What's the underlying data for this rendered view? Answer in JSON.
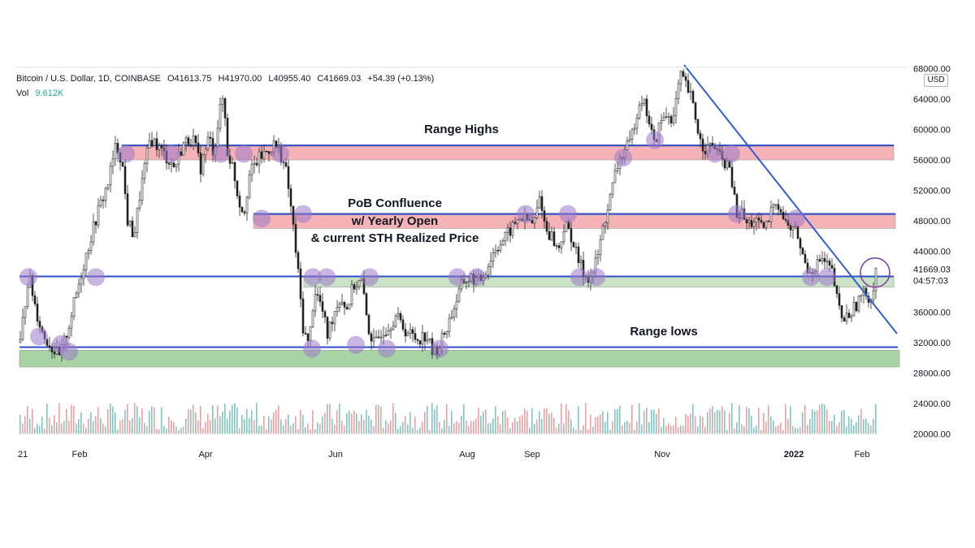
{
  "header": {
    "symbol": "Bitcoin / U.S. Dollar, 1D, COINBASE",
    "open": "O41613.75",
    "high": "H41970.00",
    "low": "L40955.40",
    "close": "C41669.03",
    "change": "+54.39 (+0.13%)",
    "volume_label": "Vol",
    "volume_value": "9.612K",
    "currency": "USD"
  },
  "chart_data": {
    "type": "candlestick",
    "x_ticks": [
      "21",
      "Feb",
      "Apr",
      "Jun",
      "Aug",
      "Sep",
      "Nov",
      "2022",
      "Feb"
    ],
    "y_ticks": [
      68000,
      64000,
      60000,
      56000,
      52000,
      48000,
      44000,
      36000,
      32000,
      28000,
      24000,
      20000
    ],
    "y_tick_labels": [
      "68000.00",
      "64000.00",
      "60000.00",
      "56000.00",
      "52000.00",
      "48000.00",
      "44000.00",
      "36000.00",
      "32000.00",
      "28000.00",
      "24000.00",
      "20000.00"
    ],
    "ylim": [
      20000,
      68500
    ],
    "price_label": "41669.03",
    "countdown_label": "04:57:03",
    "last_price": 41669.03,
    "zones": [
      {
        "name": "Range Highs",
        "color": "#f5b3b8",
        "top": 58000,
        "bottom": 56000
      },
      {
        "name": "PoB Confluence",
        "color": "#f5b3b8",
        "top": 49000,
        "bottom": 47000
      },
      {
        "name": "support-band",
        "color": "#c9e3c4",
        "top": 40700,
        "bottom": 39300
      },
      {
        "name": "Range lows",
        "color": "#a8d3a5",
        "top": 31000,
        "bottom": 28800
      }
    ],
    "horizontal_lines": [
      57900,
      48900,
      40700,
      31400
    ],
    "trendline": {
      "from": [
        "Nov 10",
        69000
      ],
      "to": [
        "Feb",
        33000
      ]
    },
    "annotations": [
      "Range Highs",
      "PoB Confluence",
      "w/ Yearly Open",
      "& current STH Realized Price",
      "Range lows"
    ],
    "path": [
      [
        0,
        32000
      ],
      [
        10,
        41000
      ],
      [
        20,
        36000
      ],
      [
        28,
        33000
      ],
      [
        38,
        31500
      ],
      [
        48,
        30000
      ],
      [
        58,
        33500
      ],
      [
        68,
        38000
      ],
      [
        82,
        44000
      ],
      [
        95,
        49000
      ],
      [
        108,
        53000
      ],
      [
        118,
        58000
      ],
      [
        125,
        56000
      ],
      [
        132,
        48000
      ],
      [
        140,
        46000
      ],
      [
        148,
        52000
      ],
      [
        160,
        59000
      ],
      [
        175,
        57000
      ],
      [
        190,
        55000
      ],
      [
        200,
        58000
      ],
      [
        212,
        59000
      ],
      [
        222,
        55000
      ],
      [
        232,
        59000
      ],
      [
        238,
        57000
      ],
      [
        245,
        62000
      ],
      [
        250,
        64500
      ],
      [
        255,
        57000
      ],
      [
        262,
        55000
      ],
      [
        268,
        51000
      ],
      [
        275,
        49000
      ],
      [
        282,
        54000
      ],
      [
        292,
        56000
      ],
      [
        302,
        57000
      ],
      [
        312,
        58000
      ],
      [
        320,
        57000
      ],
      [
        328,
        54000
      ],
      [
        335,
        48000
      ],
      [
        342,
        41000
      ],
      [
        348,
        34000
      ],
      [
        355,
        31500
      ],
      [
        362,
        39000
      ],
      [
        370,
        37000
      ],
      [
        378,
        33000
      ],
      [
        386,
        36000
      ],
      [
        394,
        38000
      ],
      [
        402,
        36500
      ],
      [
        410,
        39500
      ],
      [
        420,
        40000
      ],
      [
        428,
        34000
      ],
      [
        436,
        31500
      ],
      [
        444,
        33500
      ],
      [
        452,
        34000
      ],
      [
        462,
        35500
      ],
      [
        475,
        33500
      ],
      [
        488,
        32500
      ],
      [
        500,
        33000
      ],
      [
        508,
        30500
      ],
      [
        515,
        31500
      ],
      [
        525,
        34000
      ],
      [
        535,
        37000
      ],
      [
        545,
        40000
      ],
      [
        555,
        40500
      ],
      [
        565,
        40000
      ],
      [
        575,
        42000
      ],
      [
        585,
        44500
      ],
      [
        595,
        45500
      ],
      [
        605,
        47000
      ],
      [
        615,
        48500
      ],
      [
        625,
        48000
      ],
      [
        632,
        47500
      ],
      [
        640,
        51500
      ],
      [
        646,
        47000
      ],
      [
        654,
        46000
      ],
      [
        662,
        44000
      ],
      [
        670,
        47500
      ],
      [
        678,
        46000
      ],
      [
        686,
        43000
      ],
      [
        694,
        41000
      ],
      [
        702,
        40500
      ],
      [
        710,
        43000
      ],
      [
        718,
        47500
      ],
      [
        726,
        51000
      ],
      [
        734,
        55000
      ],
      [
        742,
        57000
      ],
      [
        750,
        58000
      ],
      [
        756,
        61000
      ],
      [
        764,
        64500
      ],
      [
        772,
        62000
      ],
      [
        780,
        58000
      ],
      [
        788,
        61000
      ],
      [
        796,
        62000
      ],
      [
        804,
        61500
      ],
      [
        812,
        67000
      ],
      [
        818,
        66000
      ],
      [
        826,
        64000
      ],
      [
        832,
        61000
      ],
      [
        838,
        58000
      ],
      [
        846,
        57500
      ],
      [
        854,
        58000
      ],
      [
        862,
        56000
      ],
      [
        870,
        55500
      ],
      [
        876,
        53000
      ],
      [
        882,
        48500
      ],
      [
        888,
        49000
      ],
      [
        894,
        47500
      ],
      [
        904,
        48000
      ],
      [
        912,
        47000
      ],
      [
        920,
        47500
      ],
      [
        928,
        51000
      ],
      [
        934,
        50000
      ],
      [
        940,
        48000
      ],
      [
        948,
        47000
      ],
      [
        956,
        46500
      ],
      [
        962,
        43500
      ],
      [
        970,
        41500
      ],
      [
        978,
        42000
      ],
      [
        986,
        43000
      ],
      [
        994,
        42000
      ],
      [
        1000,
        41000
      ],
      [
        1006,
        37000
      ],
      [
        1012,
        35000
      ],
      [
        1018,
        35500
      ],
      [
        1026,
        36500
      ],
      [
        1034,
        38000
      ],
      [
        1042,
        38500
      ],
      [
        1048,
        37500
      ],
      [
        1052,
        41500
      ],
      [
        1054,
        42500
      ]
    ],
    "volume_spikes": [
      [
        20,
        27000
      ],
      [
        130,
        26500
      ],
      [
        356,
        28000
      ],
      [
        452,
        24500
      ],
      [
        1006,
        24800
      ]
    ]
  }
}
